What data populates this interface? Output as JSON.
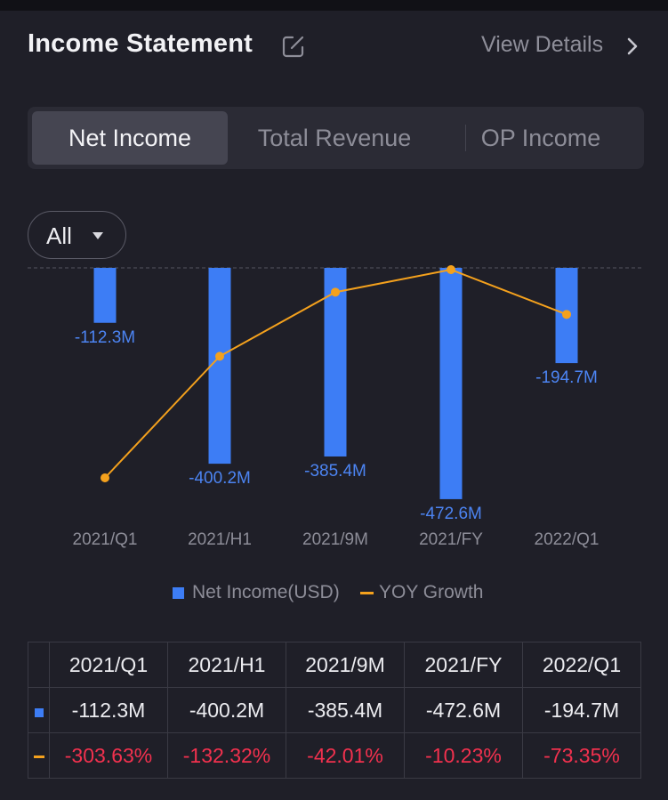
{
  "header": {
    "title": "Income Statement",
    "view_details": "View Details"
  },
  "icons": {
    "edit": "edit-icon",
    "chevron": "chevron-right-icon",
    "dropdown": "caret-down-icon"
  },
  "tabs": [
    {
      "label": "Net Income",
      "active": true
    },
    {
      "label": "Total Revenue",
      "active": false
    },
    {
      "label": "OP Income",
      "active": false
    }
  ],
  "filter": {
    "label": "All"
  },
  "colors": {
    "bar": "#3d7df5",
    "line": "#f4a11d",
    "negative": "#f2314e",
    "bar_label": "#4c84f2"
  },
  "chart_data": {
    "type": "bar",
    "categories": [
      "2021/Q1",
      "2021/H1",
      "2021/9M",
      "2021/FY",
      "2022/Q1"
    ],
    "bar_labels": [
      "-112.3M",
      "-400.2M",
      "-385.4M",
      "-472.6M",
      "-194.7M"
    ],
    "series": [
      {
        "name": "Net Income(USD)",
        "type": "bar",
        "values": [
          -112.3,
          -400.2,
          -385.4,
          -472.6,
          -194.7
        ]
      },
      {
        "name": "YOY Growth",
        "type": "line",
        "values": [
          -303.63,
          -132.32,
          -42.01,
          -10.23,
          -73.35
        ]
      }
    ],
    "legend_position": "bottom",
    "grid": false
  },
  "table": {
    "headers": [
      "2021/Q1",
      "2021/H1",
      "2021/9M",
      "2021/FY",
      "2022/Q1"
    ],
    "net_income": [
      "-112.3M",
      "-400.2M",
      "-385.4M",
      "-472.6M",
      "-194.7M"
    ],
    "yoy_growth": [
      "-303.63%",
      "-132.32%",
      "-42.01%",
      "-10.23%",
      "-73.35%"
    ]
  }
}
